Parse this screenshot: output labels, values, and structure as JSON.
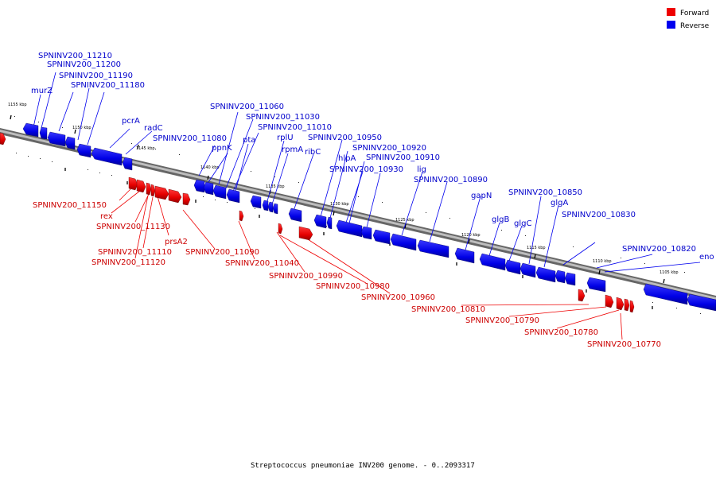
{
  "caption": "Streptococcus pneumoniae INV200 genome. - 0..2093317",
  "legend": [
    {
      "label": "Forward",
      "color": "#ee0000"
    },
    {
      "label": "Reverse",
      "color": "#0000ee"
    }
  ],
  "scale_labels": [
    "1155 kbp",
    "1150 kbp",
    "1145 kbp",
    "1140 kbp",
    "1135 kbp",
    "1130 kbp",
    "1125 kbp",
    "1120 kbp",
    "1115 kbp",
    "1110 kbp",
    "1105 kbp"
  ],
  "reverse_genes": [
    "SPNINV200_11210",
    "SPNINV200_11200",
    "SPNINV200_11190",
    "SPNINV200_11180",
    "murZ",
    "pcrA",
    "radC",
    "SPNINV200_11080",
    "SPNINV200_11060",
    "SPNINV200_11030",
    "SPNINV200_11010",
    "ppnK",
    "pta",
    "rplU",
    "rpmA",
    "ribC",
    "SPNINV200_10950",
    "SPNINV200_10920",
    "SPNINV200_10910",
    "hlpA",
    "SPNINV200_10930",
    "lig",
    "SPNINV200_10890",
    "gapN",
    "glgB",
    "glgC",
    "SPNINV200_10850",
    "glgA",
    "SPNINV200_10830",
    "SPNINV200_10820",
    "eno"
  ],
  "forward_genes": [
    "SPNINV200_11150",
    "rex",
    "SPNINV200_11130",
    "prsA2",
    "SPNINV200_11110",
    "SPNINV200_11120",
    "SPNINV200_11090",
    "SPNINV200_11040",
    "SPNINV200_10990",
    "SPNINV200_10980",
    "SPNINV200_10960",
    "SPNINV200_10810",
    "SPNINV200_10790",
    "SPNINV200_10780",
    "SPNINV200_10770"
  ]
}
